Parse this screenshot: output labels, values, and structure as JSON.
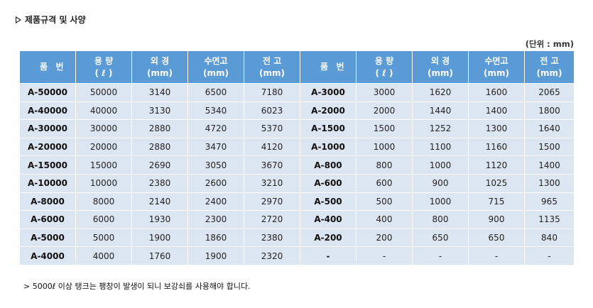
{
  "section": {
    "title": "제품규격 및 사양",
    "marker_icon": "triangle-right-icon"
  },
  "unit_label": "(단위 : mm)",
  "headers": {
    "code": [
      "품",
      "번"
    ],
    "capacity": [
      "용 량",
      "( ℓ )"
    ],
    "outer_diameter": [
      "외 경",
      "(mm)"
    ],
    "water_height": [
      "수면고",
      "(mm)"
    ],
    "total_height": [
      "전 고",
      "(mm)"
    ]
  },
  "left_rows": [
    [
      "A-50000",
      "50000",
      "3140",
      "6500",
      "7180"
    ],
    [
      "A-40000",
      "40000",
      "3130",
      "5340",
      "6023"
    ],
    [
      "A-30000",
      "30000",
      "2880",
      "4720",
      "5370"
    ],
    [
      "A-20000",
      "20000",
      "2880",
      "3470",
      "4120"
    ],
    [
      "A-15000",
      "15000",
      "2690",
      "3050",
      "3670"
    ],
    [
      "A-10000",
      "10000",
      "2380",
      "2600",
      "3210"
    ],
    [
      "A-8000",
      "8000",
      "2140",
      "2400",
      "2970"
    ],
    [
      "A-6000",
      "6000",
      "1930",
      "2300",
      "2720"
    ],
    [
      "A-5000",
      "5000",
      "1900",
      "1860",
      "2380"
    ],
    [
      "A-4000",
      "4000",
      "1760",
      "1900",
      "2320"
    ]
  ],
  "right_rows": [
    [
      "A-3000",
      "3000",
      "1620",
      "1600",
      "2065"
    ],
    [
      "A-2000",
      "2000",
      "1440",
      "1400",
      "1800"
    ],
    [
      "A-1500",
      "1500",
      "1252",
      "1300",
      "1640"
    ],
    [
      "A-1000",
      "1000",
      "1100",
      "1160",
      "1500"
    ],
    [
      "A-800",
      "800",
      "1000",
      "1120",
      "1400"
    ],
    [
      "A-600",
      "600",
      "900",
      "1025",
      "1300"
    ],
    [
      "A-500",
      "500",
      "1000",
      "715",
      "965"
    ],
    [
      "A-400",
      "400",
      "800",
      "900",
      "1135"
    ],
    [
      "A-200",
      "200",
      "650",
      "650",
      "840"
    ],
    [
      "-",
      "-",
      "-",
      "-",
      "-"
    ]
  ],
  "note": "> 5000ℓ 이상 탱크는 팽창이 발생이 되니 보강쇠를 사용해야 합니다.",
  "colors": {
    "header_bg": "#5b9bd5",
    "cell_bg": "#dce6f2",
    "header_text": "#ffffff"
  }
}
